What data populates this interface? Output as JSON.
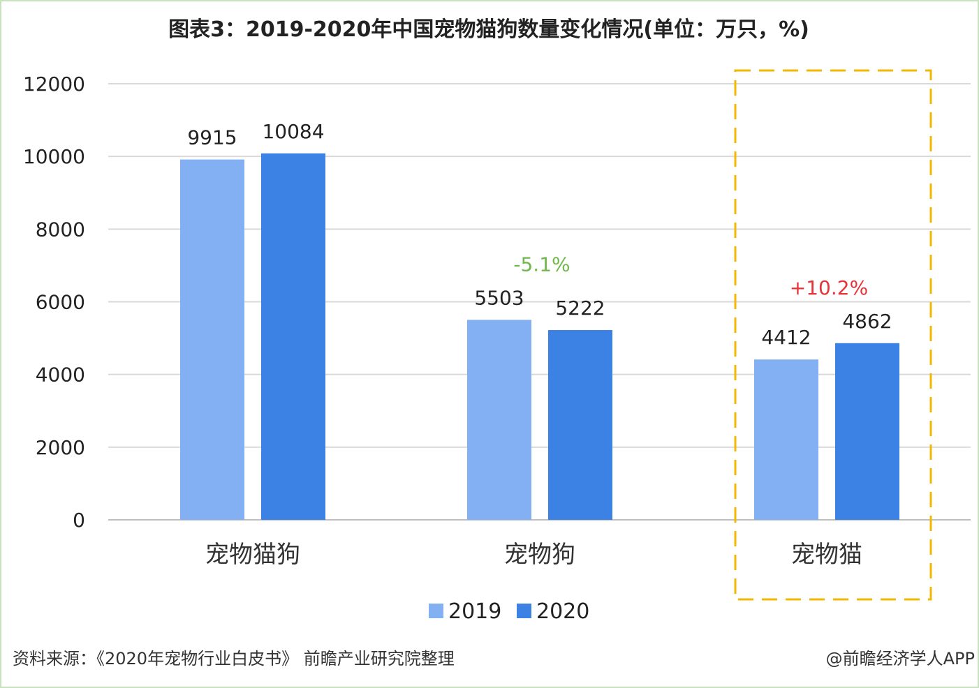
{
  "chart_data": {
    "type": "bar",
    "title": "图表3：2019-2020年中国宠物猫狗数量变化情况(单位：万只，%)",
    "categories": [
      "宠物猫狗",
      "宠物狗",
      "宠物猫"
    ],
    "series": [
      {
        "name": "2019",
        "values": [
          9915,
          5503,
          4412
        ],
        "color": "#82b0f2"
      },
      {
        "name": "2020",
        "values": [
          10084,
          5222,
          4862
        ],
        "color": "#3c82e4"
      }
    ],
    "ylim": [
      0,
      12000
    ],
    "yticks": [
      0,
      2000,
      4000,
      6000,
      8000,
      10000,
      12000
    ],
    "grid": true,
    "legend_position": "bottom",
    "annotations": [
      {
        "category_index": 1,
        "text": "-5.1%",
        "color": "#6fb84a"
      },
      {
        "category_index": 2,
        "text": "+10.2%",
        "color": "#e8323a"
      }
    ],
    "highlight": {
      "category_index": 2,
      "color": "#f5b800",
      "style": "dashed"
    }
  },
  "footer": {
    "source": "资料来源：《2020年宠物行业白皮书》 前瞻产业研究院整理",
    "credit": "@前瞻经济学人APP"
  }
}
